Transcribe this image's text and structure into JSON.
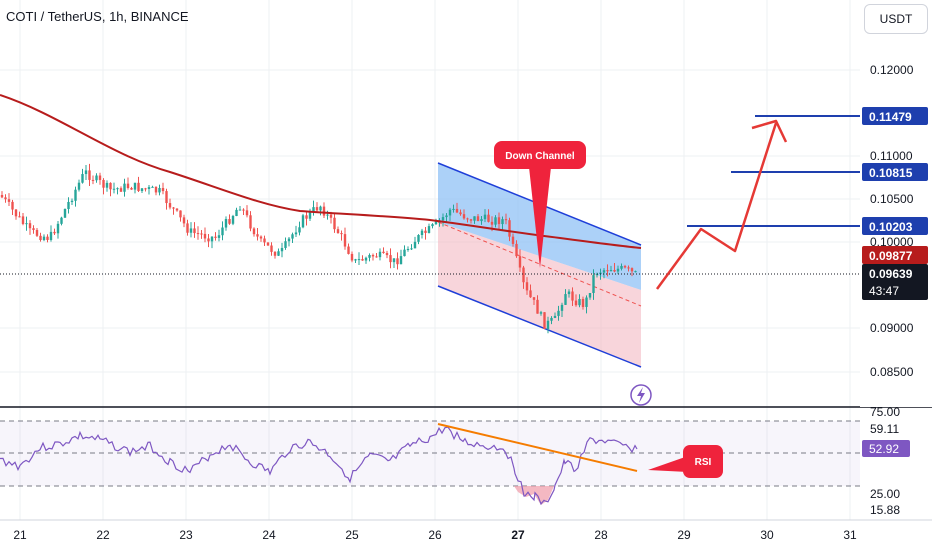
{
  "header": {
    "title": "COTI / TetherUS, 1h, BINANCE",
    "currency": "USDT"
  },
  "price_axis": {
    "ticks": [
      "0.12000",
      "0.11000",
      "0.10500",
      "0.10000",
      "0.09000",
      "0.08500"
    ],
    "tags": [
      {
        "label": "0.11479",
        "color": "#1e3fae"
      },
      {
        "label": "0.10815",
        "color": "#1e3fae"
      },
      {
        "label": "0.10203",
        "color": "#1e3fae"
      },
      {
        "label": "0.09877",
        "color": "#b71c1c"
      },
      {
        "label": "0.09639",
        "color": "#131722"
      }
    ],
    "countdown": "43:47"
  },
  "rsi_axis": {
    "ticks": [
      "75.00",
      "59.11",
      "25.00",
      "15.88"
    ],
    "tag": {
      "label": "52.92",
      "color": "#7e57c2"
    }
  },
  "time_axis": {
    "labels": [
      "21",
      "22",
      "23",
      "24",
      "25",
      "26",
      "27",
      "28",
      "29",
      "30",
      "31"
    ],
    "bold": "27"
  },
  "annotations": {
    "down_channel": "Down Channel",
    "rsi": "RSI"
  },
  "chart_data": {
    "type": "candlestick",
    "symbol": "COTI / TetherUS",
    "interval": "1h",
    "exchange": "BINANCE",
    "last_price": 0.09639,
    "moving_average": 0.09877,
    "targets": [
      0.10203,
      0.10815,
      0.11479
    ],
    "rsi": {
      "value": 52.92,
      "ma": 59.11,
      "levels": [
        25,
        75
      ]
    },
    "colors": {
      "up": "#26a69a",
      "down": "#ef5350",
      "ma": "#b71c1c",
      "rsi": "#7e57c2",
      "target": "#1e3fae",
      "arrow": "#e53935"
    }
  }
}
